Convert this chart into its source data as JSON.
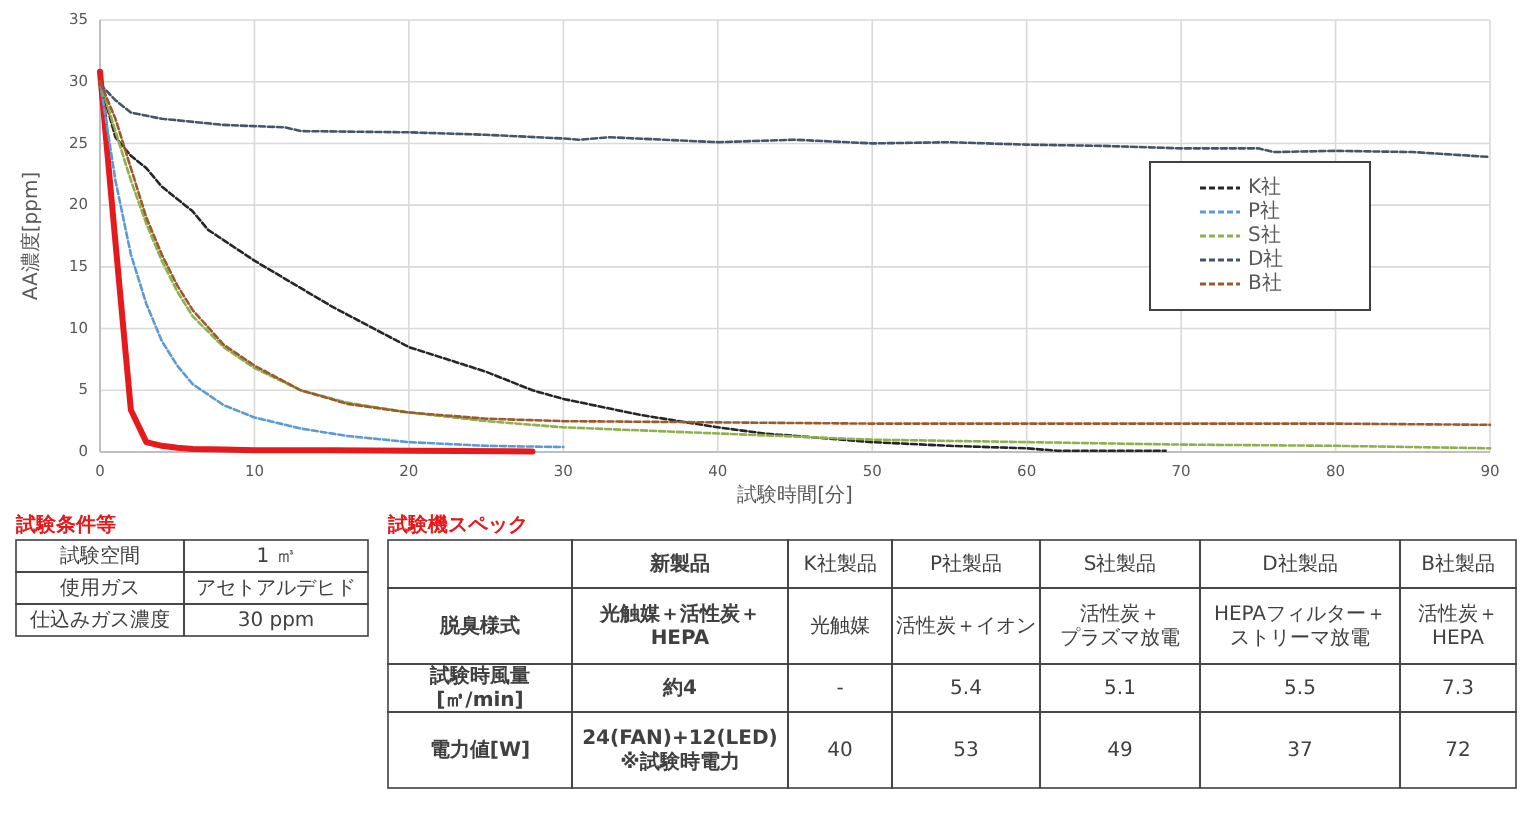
{
  "chart_data": {
    "type": "line",
    "xlabel": "試験時間[分]",
    "ylabel": "AA濃度[ppm]",
    "xlim": [
      0,
      90
    ],
    "xticks": [
      0,
      10,
      20,
      30,
      40,
      50,
      60,
      70,
      80,
      90
    ],
    "ylim": [
      0,
      35
    ],
    "yticks": [
      0,
      5,
      10,
      15,
      20,
      25,
      30,
      35
    ],
    "grid": true,
    "legend": "right",
    "marker": "none",
    "series": [
      {
        "color": "#e41a1c",
        "line_style": "solid",
        "x": [
          0,
          1,
          2,
          3,
          4,
          5,
          6,
          8,
          10,
          15,
          20,
          28
        ],
        "values": [
          30.8,
          17,
          3.4,
          0.8,
          0.5,
          0.35,
          0.25,
          0.2,
          0.15,
          0.15,
          0.1,
          0.05
        ]
      },
      {
        "name": "K社",
        "color": "#262626",
        "line_style": "dashed",
        "x": [
          0,
          1,
          2,
          3,
          4,
          5,
          6,
          7,
          10,
          15,
          20,
          25,
          28,
          30,
          35,
          40,
          43,
          50,
          55,
          60,
          62,
          69
        ],
        "values": [
          30,
          25.5,
          24,
          23,
          21.5,
          20.5,
          19.5,
          18,
          15.5,
          11.8,
          8.5,
          6.5,
          5,
          4.3,
          3,
          2,
          1.5,
          0.8,
          0.5,
          0.3,
          0.1,
          0.1
        ]
      },
      {
        "name": "P社",
        "color": "#5b9bd5",
        "line_style": "dashed",
        "x": [
          0,
          1,
          2,
          3,
          4,
          5,
          6,
          8,
          10,
          13,
          16,
          20,
          25,
          30
        ],
        "values": [
          30,
          22,
          16,
          12,
          9,
          7,
          5.5,
          3.8,
          2.8,
          1.9,
          1.3,
          0.8,
          0.5,
          0.4
        ]
      },
      {
        "name": "S社",
        "color": "#8fb04a",
        "line_style": "dashed",
        "x": [
          0,
          1,
          2,
          3,
          4,
          5,
          6,
          8,
          10,
          13,
          16,
          20,
          25,
          30,
          40,
          50,
          60,
          70,
          80,
          90
        ],
        "values": [
          30,
          26,
          22,
          18.5,
          15.5,
          13,
          11,
          8.5,
          6.8,
          5,
          4,
          3.2,
          2.5,
          2,
          1.5,
          1,
          0.8,
          0.6,
          0.5,
          0.3
        ]
      },
      {
        "name": "D社",
        "color": "#44546a",
        "line_style": "dashed",
        "x": [
          0,
          1,
          2,
          4,
          8,
          10,
          12,
          13,
          20,
          25,
          30,
          31,
          33,
          40,
          45,
          50,
          55,
          60,
          65,
          70,
          75,
          76,
          80,
          85,
          90
        ],
        "values": [
          29.8,
          28.5,
          27.5,
          27,
          26.5,
          26.4,
          26.3,
          26,
          25.9,
          25.7,
          25.4,
          25.3,
          25.5,
          25.1,
          25.3,
          25,
          25.1,
          24.9,
          24.8,
          24.6,
          24.6,
          24.3,
          24.4,
          24.3,
          23.9
        ]
      },
      {
        "name": "B社",
        "color": "#9c5a2c",
        "line_style": "dashed",
        "x": [
          0,
          1,
          2,
          3,
          4,
          5,
          6,
          8,
          10,
          13,
          16,
          20,
          25,
          30,
          40,
          50,
          60,
          70,
          80,
          90
        ],
        "values": [
          30,
          27,
          23,
          19,
          16,
          13.5,
          11.5,
          8.7,
          7,
          5,
          3.9,
          3.2,
          2.7,
          2.5,
          2.4,
          2.3,
          2.3,
          2.3,
          2.3,
          2.2
        ]
      }
    ],
    "annotations": [
      "試験条件等",
      "試験空間",
      "1 ㎥",
      "使用ガス",
      "アセトアルデヒド",
      "仕込みガス濃度",
      "30 ppm",
      "試験機スペック",
      "新製品",
      "K社製品",
      "P社製品",
      "S社製品",
      "D社製品",
      "B社製品",
      "脱臭様式",
      "光触媒＋活性炭＋HEPA",
      "光触媒",
      "活性炭＋イオン",
      "活性炭＋プラズマ放電",
      "HEPAフィルター＋ストリーマ放電",
      "活性炭＋HEPA",
      "試験時風量[㎥/min]",
      "約4",
      "-",
      "5.4",
      "5.1",
      "5.5",
      "7.3",
      "電力値[W]",
      "24(FAN)+12(LED) ※試験時電力",
      "40",
      "53",
      "49",
      "37",
      "72"
    ]
  }
}
